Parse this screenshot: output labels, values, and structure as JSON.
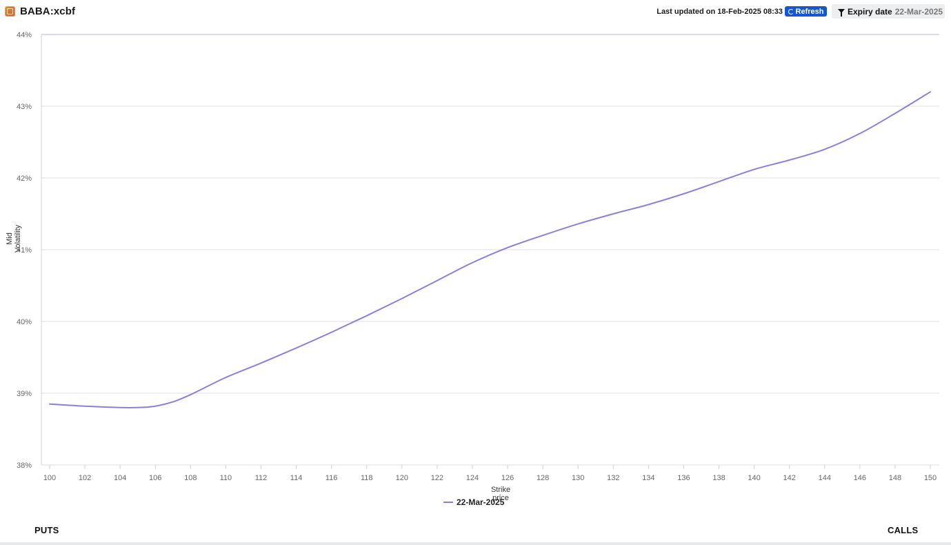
{
  "header": {
    "instrument": "BABA:xcbf",
    "last_updated": "Last updated on 18-Feb-2025 08:33",
    "refresh_label": "Refresh",
    "expiry_label": "Expiry date",
    "expiry_value": "22-Mar-2025",
    "icons": {
      "logo": "brand-logo-icon",
      "refresh": "refresh-icon",
      "filter": "filter-icon"
    },
    "colors": {
      "refresh_bg": "#1357d6",
      "filter_bg": "#eceef0",
      "logo": "#f28a1e"
    }
  },
  "chart_data": {
    "type": "line",
    "xlabel": "Strike price",
    "ylabel": "Mid Volatility",
    "xlim": [
      100,
      150
    ],
    "ylim": [
      38,
      44
    ],
    "xticks": [
      100,
      102,
      104,
      106,
      108,
      110,
      112,
      114,
      116,
      118,
      120,
      122,
      124,
      126,
      128,
      130,
      132,
      134,
      136,
      138,
      140,
      142,
      144,
      146,
      148,
      150
    ],
    "xtick_labels": [
      "100",
      "102",
      "104",
      "106",
      "108",
      "110",
      "112",
      "114",
      "116",
      "118",
      "120",
      "122",
      "124",
      "126",
      "128",
      "130",
      "132",
      "134",
      "136",
      "138",
      "140",
      "142",
      "144",
      "146",
      "148",
      "150"
    ],
    "yticks": [
      38,
      39,
      40,
      41,
      42,
      43,
      44
    ],
    "ytick_labels": [
      "38%",
      "39%",
      "40%",
      "41%",
      "42%",
      "43%",
      "44%"
    ],
    "grid": true,
    "legend_position": "bottom-center",
    "x": [
      100,
      102,
      104,
      105,
      106,
      107,
      108,
      110,
      112,
      114,
      116,
      118,
      120,
      122,
      124,
      126,
      128,
      130,
      132,
      134,
      136,
      138,
      140,
      142,
      144,
      146,
      148,
      150
    ],
    "series": [
      {
        "name": "22-Mar-2025",
        "color": "#8b7ee0",
        "values": [
          38.85,
          38.82,
          38.8,
          38.8,
          38.82,
          38.88,
          38.98,
          39.22,
          39.42,
          39.63,
          39.85,
          40.08,
          40.32,
          40.57,
          40.82,
          41.03,
          41.2,
          41.36,
          41.5,
          41.63,
          41.78,
          41.95,
          42.12,
          42.25,
          42.4,
          42.62,
          42.9,
          43.2
        ]
      }
    ],
    "colors": {
      "grid": "#dcdde8",
      "top_gridline": "#b7b3e0",
      "axis": "#cfd2d9",
      "tick_text": "#666666"
    }
  },
  "footer": {
    "puts_label": "PUTS",
    "calls_label": "CALLS"
  }
}
